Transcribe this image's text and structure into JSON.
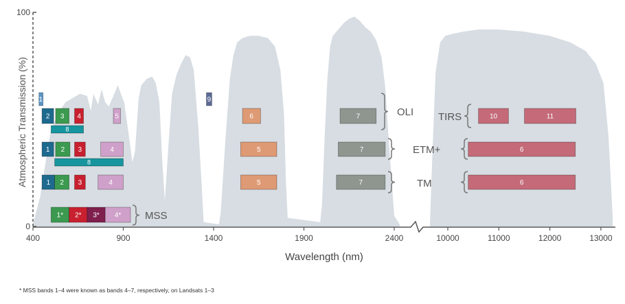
{
  "y_axis": {
    "label": "Atmospheric Transmission (%)",
    "ticks": [
      {
        "label": "100",
        "value": 100
      },
      {
        "label": "0",
        "value": 0
      }
    ]
  },
  "x_axis": {
    "label": "Wavelength (nm)",
    "ticks": [
      "400",
      "900",
      "1400",
      "1900",
      "2400",
      "10000",
      "11000",
      "12000",
      "13000"
    ]
  },
  "sensors": [
    {
      "id": "oli",
      "label": "OLI"
    },
    {
      "id": "tirs",
      "label": "TIRS"
    },
    {
      "id": "etm",
      "label": "ETM+"
    },
    {
      "id": "tm",
      "label": "TM"
    },
    {
      "id": "mss",
      "label": "MSS"
    }
  ],
  "bands": [
    {
      "row": "oli",
      "label": "1",
      "from": 433,
      "to": 453,
      "color": "#5b95c6",
      "level": "hi"
    },
    {
      "row": "oli",
      "label": "2",
      "from": 450,
      "to": 515,
      "color": "#1e6a8f"
    },
    {
      "row": "oli",
      "label": "3",
      "from": 525,
      "to": 600,
      "color": "#3b9a4f"
    },
    {
      "row": "oli",
      "label": "4",
      "from": 630,
      "to": 680,
      "color": "#c8202f"
    },
    {
      "row": "oli",
      "label": "5",
      "from": 845,
      "to": 885,
      "color": "#cfa0c9"
    },
    {
      "row": "oli",
      "label": "8",
      "from": 500,
      "to": 680,
      "color": "#16959e",
      "level": "lo"
    },
    {
      "row": "oli",
      "label": "9",
      "from": 1360,
      "to": 1390,
      "color": "#5c6b95",
      "level": "hi"
    },
    {
      "row": "oli",
      "label": "6",
      "from": 1560,
      "to": 1660,
      "color": "#de9a74"
    },
    {
      "row": "oli",
      "label": "7",
      "from": 2100,
      "to": 2300,
      "color": "#8f958f"
    },
    {
      "row": "tirs",
      "label": "10",
      "from": 10600,
      "to": 11190,
      "color": "#c46a78"
    },
    {
      "row": "tirs",
      "label": "11",
      "from": 11500,
      "to": 12510,
      "color": "#c46a78"
    },
    {
      "row": "etm",
      "label": "1",
      "from": 450,
      "to": 515,
      "color": "#1e6a8f"
    },
    {
      "row": "etm",
      "label": "2",
      "from": 525,
      "to": 605,
      "color": "#3b9a4f"
    },
    {
      "row": "etm",
      "label": "3",
      "from": 630,
      "to": 690,
      "color": "#c8202f"
    },
    {
      "row": "etm",
      "label": "4",
      "from": 775,
      "to": 900,
      "color": "#cfa0c9"
    },
    {
      "row": "etm",
      "label": "8",
      "from": 520,
      "to": 900,
      "color": "#16959e",
      "level": "lo"
    },
    {
      "row": "etm",
      "label": "5",
      "from": 1550,
      "to": 1750,
      "color": "#de9a74"
    },
    {
      "row": "etm",
      "label": "7",
      "from": 2090,
      "to": 2350,
      "color": "#8f958f"
    },
    {
      "row": "etm",
      "label": "6",
      "from": 10400,
      "to": 12500,
      "color": "#c46a78"
    },
    {
      "row": "tm",
      "label": "1",
      "from": 450,
      "to": 520,
      "color": "#1e6a8f"
    },
    {
      "row": "tm",
      "label": "2",
      "from": 520,
      "to": 600,
      "color": "#3b9a4f"
    },
    {
      "row": "tm",
      "label": "3",
      "from": 630,
      "to": 690,
      "color": "#c8202f"
    },
    {
      "row": "tm",
      "label": "4",
      "from": 760,
      "to": 900,
      "color": "#cfa0c9"
    },
    {
      "row": "tm",
      "label": "5",
      "from": 1550,
      "to": 1750,
      "color": "#de9a74"
    },
    {
      "row": "tm",
      "label": "7",
      "from": 2080,
      "to": 2350,
      "color": "#8f958f"
    },
    {
      "row": "tm",
      "label": "6",
      "from": 10400,
      "to": 12500,
      "color": "#c46a78"
    },
    {
      "row": "mss",
      "label": "1*",
      "from": 500,
      "to": 600,
      "color": "#3b9a4f"
    },
    {
      "row": "mss",
      "label": "2*",
      "from": 600,
      "to": 700,
      "color": "#c8202f"
    },
    {
      "row": "mss",
      "label": "3*",
      "from": 700,
      "to": 800,
      "color": "#7e1f4d"
    },
    {
      "row": "mss",
      "label": "4*",
      "from": 800,
      "to": 940,
      "color": "#cfa0c9"
    }
  ],
  "footnote": "* MSS bands 1–4 were known as bands 4–7, respectively, on Landsats 1–3",
  "colors": {
    "transmission": "#d7dde2",
    "axis": "#555555"
  }
}
